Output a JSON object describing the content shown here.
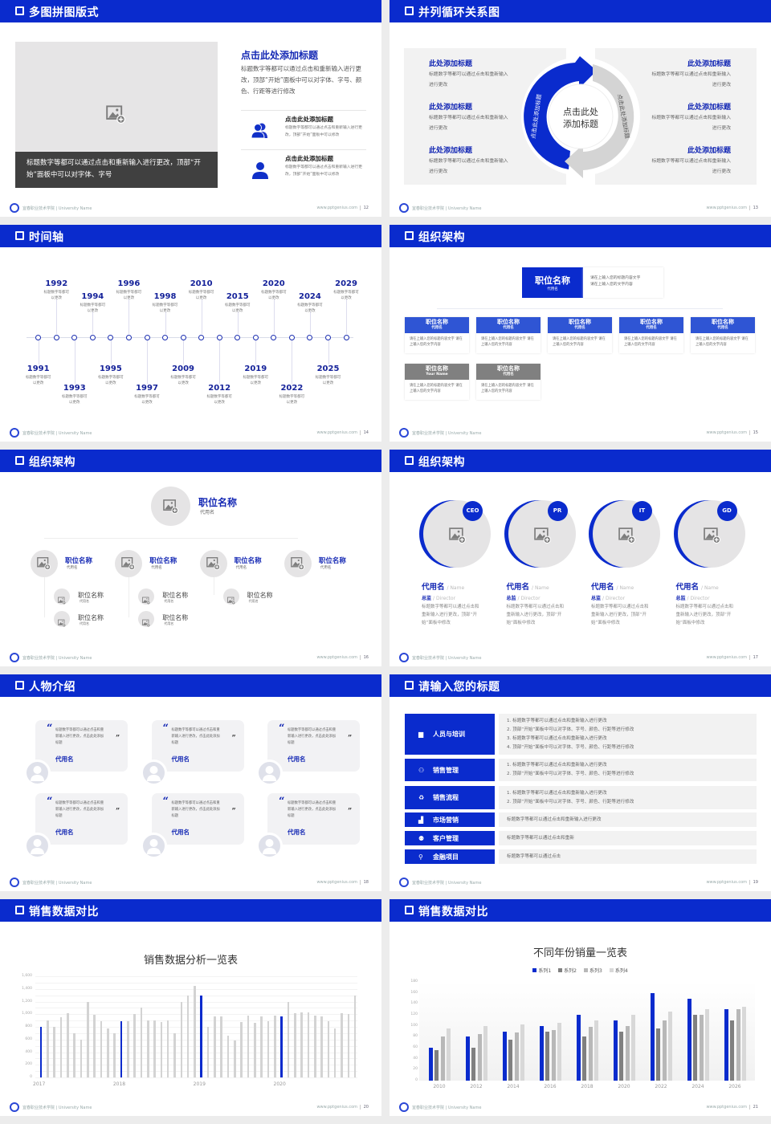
{
  "footer": {
    "school": "宜春职业技术学院 | University Name",
    "url": "www.pptgenius.com"
  },
  "colors": {
    "brand": "#0a2bcd",
    "panel": "#f2f2f2",
    "placeholder": "#e6e5e6"
  },
  "s12": {
    "title": "多图拼图版式",
    "page": "12",
    "caption": "标题数字等都可以通过点击和重新输入进行更改，顶部“开始”面板中可以对字体、字号",
    "heading": "点击此处添加标题",
    "para": "标题数字等都可以通过点击和重新输入进行更改，顶部“开始”面板中可以对字体、字号、颜色、行距等进行修改",
    "items": [
      {
        "icon": "users-icon",
        "title": "点击此处添加标题",
        "text": "标题数字等都可以通过点击和重新输入进行更改，顶部“开始”面板中可以修改"
      },
      {
        "icon": "user-icon",
        "title": "点击此处添加标题",
        "text": "标题数字等都可以通过点击和重新输入进行更改，顶部“开始”面板中可以修改"
      }
    ]
  },
  "s13": {
    "title": "并列循环关系图",
    "page": "13",
    "center_line1": "点击此处",
    "center_line2": "添加标题",
    "arc_left": "点击此处添加标题",
    "arc_right": "点击此处添加标题",
    "left": [
      {
        "title": "此处添加标题",
        "text": "标题数字等都可以通过点击和重新输入进行更改"
      },
      {
        "title": "此处添加标题",
        "text": "标题数字等都可以通过点击和重新输入进行更改"
      },
      {
        "title": "此处添加标题",
        "text": "标题数字等都可以通过点击和重新输入进行更改"
      }
    ],
    "right": [
      {
        "title": "此处添加标题",
        "text": "标题数字等都可以通过点击和重新输入进行更改"
      },
      {
        "title": "此处添加标题",
        "text": "标题数字等都可以通过点击和重新输入进行更改"
      },
      {
        "title": "此处添加标题",
        "text": "标题数字等都可以通过点击和重新输入进行更改"
      }
    ]
  },
  "s14": {
    "title": "时间轴",
    "page": "14",
    "events": [
      {
        "year": "1991",
        "text": "标题数字等都可以更改",
        "side": "bottom",
        "level": "near"
      },
      {
        "year": "1992",
        "text": "标题数字等都可以更改",
        "side": "top",
        "level": "far"
      },
      {
        "year": "1993",
        "text": "标题数字等都可以更改",
        "side": "bottom",
        "level": "far"
      },
      {
        "year": "1994",
        "text": "标题数字等都可以更改",
        "side": "top",
        "level": "near"
      },
      {
        "year": "1995",
        "text": "标题数字等都可以更改",
        "side": "bottom",
        "level": "near"
      },
      {
        "year": "1996",
        "text": "标题数字等都可以更改",
        "side": "top",
        "level": "far"
      },
      {
        "year": "1997",
        "text": "标题数字等都可以更改",
        "side": "bottom",
        "level": "far"
      },
      {
        "year": "1998",
        "text": "标题数字等都可以更改",
        "side": "top",
        "level": "near"
      },
      {
        "year": "2009",
        "text": "标题数字等都可以更改",
        "side": "bottom",
        "level": "near"
      },
      {
        "year": "2010",
        "text": "标题数字等都可以更改",
        "side": "top",
        "level": "far"
      },
      {
        "year": "2012",
        "text": "标题数字等都可以更改",
        "side": "bottom",
        "level": "far"
      },
      {
        "year": "2015",
        "text": "标题数字等都可以更改",
        "side": "top",
        "level": "near"
      },
      {
        "year": "2019",
        "text": "标题数字等都可以更改",
        "side": "bottom",
        "level": "near"
      },
      {
        "year": "2020",
        "text": "标题数字等都可以更改",
        "side": "top",
        "level": "far"
      },
      {
        "year": "2022",
        "text": "标题数字等都可以更改",
        "side": "bottom",
        "level": "far"
      },
      {
        "year": "2024",
        "text": "标题数字等都可以更改",
        "side": "top",
        "level": "near"
      },
      {
        "year": "2025",
        "text": "标题数字等都可以更改",
        "side": "bottom",
        "level": "near"
      },
      {
        "year": "2029",
        "text": "标题数字等都可以更改",
        "side": "top",
        "level": "far"
      }
    ]
  },
  "s15": {
    "title": "组织架构",
    "page": "15",
    "top": {
      "title": "职位名称",
      "sub": "代用名",
      "desc1": "请在上输入您的标题内容文字",
      "desc2": "请在上输入您的文字内容"
    },
    "boxes": [
      {
        "title": "职位名称",
        "sub": "代用名",
        "text": "请在上输入您的标题内容文字 请在上输入您的文字内容",
        "style": "blue"
      },
      {
        "title": "职位名称",
        "sub": "代用名",
        "text": "请在上输入您的标题内容文字 请在上输入您的文字内容",
        "style": "blue"
      },
      {
        "title": "职位名称",
        "sub": "代用名",
        "text": "请在上输入您的标题内容文字 请在上输入您的文字内容",
        "style": "blue"
      },
      {
        "title": "职位名称",
        "sub": "代用名",
        "text": "请在上输入您的标题内容文字 请在上输入您的文字内容",
        "style": "blue"
      },
      {
        "title": "职位名称",
        "sub": "代用名",
        "text": "请在上输入您的标题内容文字 请在上输入您的文字内容",
        "style": "blue"
      },
      {
        "title": "职位名称",
        "sub": "Your Name",
        "text": "请在上输入您的标题内容文字 请在上输入您的文字内容",
        "style": "gray"
      },
      {
        "title": "职位名称",
        "sub": "代用名",
        "text": "请在上输入您的标题内容文字 请在上输入您的文字内容",
        "style": "gray"
      }
    ]
  },
  "s16": {
    "title": "组织架构",
    "page": "16",
    "top": {
      "title": "职位名称",
      "sub": "代用名"
    },
    "level2": [
      {
        "title": "职位名称",
        "sub": "代用名",
        "children": [
          {
            "title": "职位名称",
            "sub": "代用名"
          },
          {
            "title": "职位名称",
            "sub": "代用名"
          }
        ]
      },
      {
        "title": "职位名称",
        "sub": "代用名",
        "children": [
          {
            "title": "职位名称",
            "sub": "代用名"
          },
          {
            "title": "职位名称",
            "sub": "代用名"
          }
        ]
      },
      {
        "title": "职位名称",
        "sub": "代用名",
        "children": [
          {
            "title": "职位名称",
            "sub": "代用名"
          }
        ]
      },
      {
        "title": "职位名称",
        "sub": "代用名",
        "children": []
      }
    ]
  },
  "s17": {
    "title": "组织架构",
    "page": "17",
    "people": [
      {
        "badge": "CEO",
        "name": "代用名",
        "name_en": "/ Name",
        "role": "总监",
        "role_en": "/  Director",
        "desc": "标题数字等都可以通过点击和重新输入进行更改，顶部“开始”面板中修改"
      },
      {
        "badge": "PR",
        "name": "代用名",
        "name_en": "/ Name",
        "role": "总监",
        "role_en": "/  Director",
        "desc": "标题数字等都可以通过点击和重新输入进行更改，顶部“开始”面板中修改"
      },
      {
        "badge": "IT",
        "name": "代用名",
        "name_en": "/ Name",
        "role": "总监",
        "role_en": "/  Director",
        "desc": "标题数字等都可以通过点击和重新输入进行更改，顶部“开始”面板中修改"
      },
      {
        "badge": "GD",
        "name": "代用名",
        "name_en": "/ Name",
        "role": "总监",
        "role_en": "/  Director",
        "desc": "标题数字等都可以通过点击和重新输入进行更改，顶部“开始”面板中修改"
      }
    ]
  },
  "s18": {
    "title": "人物介绍",
    "page": "18",
    "cards": [
      {
        "quote": "标题数字等都可以通过点击和重新输入进行更改，点击此处添加标题",
        "name": "代用名"
      },
      {
        "quote": "标题数字等都可以通过点击和重新输入进行更改，点击此处添加标题",
        "name": "代用名"
      },
      {
        "quote": "标题数字等都可以通过点击和重新输入进行更改，点击此处添加标题",
        "name": "代用名"
      },
      {
        "quote": "标题数字等都可以通过点击和重新输入进行更改，点击此处添加标题",
        "name": "代用名"
      },
      {
        "quote": "标题数字等都可以通过点击和重新输入进行更改，点击此处添加标题",
        "name": "代用名"
      },
      {
        "quote": "标题数字等都可以通过点击和重新输入进行更改，点击此处添加标题",
        "name": "代用名"
      }
    ]
  },
  "s19": {
    "title": "请输入您的标题",
    "page": "19",
    "rows": [
      {
        "icon": "training-icon",
        "label": "人员与培训",
        "lines": [
          "1.  标题数字等都可以通过点击和重新输入进行更改",
          "2.  顶部“开始”面板中可以对字体、字号、颜色、行距等进行修改",
          "3.  标题数字等都可以通过点击和重新输入进行更改",
          "4.  顶部“开始”面板中可以对字体、字号、颜色、行距等进行修改"
        ]
      },
      {
        "icon": "sales-manager-icon",
        "label": "销售管理",
        "lines": [
          "1.  标题数字等都可以通过点击和重新输入进行更改",
          "2.  顶部“开始”面板中可以对字体、字号、颜色、行距等进行修改"
        ]
      },
      {
        "icon": "process-icon",
        "label": "销售流程",
        "lines": [
          "1.  标题数字等都可以通过点击和重新输入进行更改",
          "2.  顶部“开始”面板中可以对字体、字号、颜色、行距等进行修改"
        ]
      },
      {
        "icon": "bar-chart-icon",
        "label": "市场营销",
        "lines": [
          "标题数字等都可以通过点击和重新输入进行更改"
        ]
      },
      {
        "icon": "customers-icon",
        "label": "客户管理",
        "lines": [
          "标题数字等都可以通过点击和重新"
        ]
      },
      {
        "icon": "finance-icon",
        "label": "金融项目",
        "lines": [
          "标题数字等都可以通过点击"
        ]
      }
    ]
  },
  "s20": {
    "title": "销售数据对比",
    "page": "20"
  },
  "s21": {
    "title": "销售数据对比",
    "page": "21"
  },
  "chart_data": [
    {
      "type": "bar",
      "title": "销售数据分析一览表",
      "xlabel": "",
      "ylabel": "",
      "ylim": [
        0,
        1600
      ],
      "yticks": [
        "0",
        "200",
        "400",
        "600",
        "800",
        "1,000",
        "1,200",
        "1,400",
        "1,600"
      ],
      "grid": true,
      "x_tick_labels": [
        {
          "index": 0,
          "label": "2017"
        },
        {
          "index": 12,
          "label": "2018"
        },
        {
          "index": 24,
          "label": "2019"
        },
        {
          "index": 36,
          "label": "2020"
        }
      ],
      "highlight_indices": [
        0,
        12,
        24,
        36
      ],
      "highlight_color": "#0a2bcd",
      "base_color": "#d3d3d3",
      "values": [
        800,
        900,
        800,
        950,
        1010,
        700,
        600,
        1200,
        990,
        890,
        780,
        700,
        890,
        890,
        1000,
        1100,
        900,
        900,
        880,
        900,
        700,
        1200,
        1300,
        1450,
        1300,
        800,
        960,
        970,
        660,
        590,
        870,
        980,
        860,
        960,
        890,
        980,
        960,
        1200,
        1010,
        1030,
        1030,
        980,
        970,
        890,
        780,
        1010,
        1000,
        1300
      ]
    },
    {
      "type": "bar",
      "title": "不同年份销量一览表",
      "xlabel": "",
      "ylabel": "",
      "ylim": [
        0,
        180
      ],
      "yticks": [
        "0",
        "20",
        "40",
        "60",
        "80",
        "100",
        "120",
        "140",
        "160",
        "180"
      ],
      "legend": "top",
      "grid": false,
      "categories": [
        "2010",
        "2012",
        "2014",
        "2016",
        "2018",
        "2020",
        "2022",
        "2024",
        "2026"
      ],
      "series": [
        {
          "name": "系列1",
          "color": "#0a2bcd",
          "values": [
            60,
            80,
            90,
            100,
            120,
            110,
            160,
            150,
            130
          ]
        },
        {
          "name": "系列2",
          "color": "#808080",
          "values": [
            55,
            60,
            75,
            90,
            80,
            90,
            95,
            120,
            110
          ]
        },
        {
          "name": "系列3",
          "color": "#b8b8b8",
          "values": [
            80,
            85,
            88,
            92,
            98,
            100,
            110,
            120,
            130
          ]
        },
        {
          "name": "系列4",
          "color": "#d8d8d8",
          "values": [
            95,
            99,
            102,
            105,
            110,
            120,
            126,
            130,
            135
          ]
        }
      ]
    }
  ]
}
